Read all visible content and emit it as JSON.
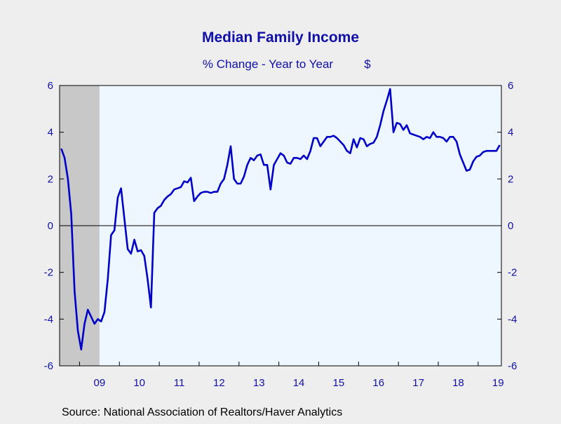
{
  "chart_data": {
    "type": "line",
    "title": "Median Family Income",
    "subtitle": "% Change - Year to Year",
    "unit": "$",
    "source": "Source:  National Association of Realtors/Haver Analytics",
    "ylim": [
      -6,
      6
    ],
    "y_ticks": [
      6,
      4,
      2,
      0,
      -2,
      -4,
      -6
    ],
    "x_tick_labels": [
      "09",
      "10",
      "11",
      "12",
      "13",
      "14",
      "15",
      "16",
      "17",
      "18",
      "19"
    ],
    "recession_shading": {
      "start": "2008-07",
      "end": "2009-06"
    },
    "zero_line": true,
    "grid": false,
    "colors": {
      "line": "#0000c8",
      "text": "#1010a8",
      "plot_background": "#eef6ff",
      "recession": "#c8c8c8",
      "frame": "#000000"
    },
    "series": [
      {
        "x": [
          "2008-07",
          "2008-08",
          "2008-09",
          "2008-10",
          "2008-11",
          "2008-12",
          "2009-01",
          "2009-02",
          "2009-03",
          "2009-04",
          "2009-05",
          "2009-06",
          "2009-07",
          "2009-08",
          "2009-09",
          "2009-10",
          "2009-11",
          "2009-12",
          "2010-01",
          "2010-02",
          "2010-03",
          "2010-04",
          "2010-05",
          "2010-06",
          "2010-07",
          "2010-08",
          "2010-09",
          "2010-10",
          "2010-11",
          "2010-12",
          "2011-01",
          "2011-02",
          "2011-03",
          "2011-04",
          "2011-05",
          "2011-06",
          "2011-07",
          "2011-08",
          "2011-09",
          "2011-10",
          "2011-11",
          "2011-12",
          "2012-01",
          "2012-02",
          "2012-03",
          "2012-04",
          "2012-05",
          "2012-06",
          "2012-07",
          "2012-08",
          "2012-09",
          "2012-10",
          "2012-11",
          "2012-12",
          "2013-01",
          "2013-02",
          "2013-03",
          "2013-04",
          "2013-05",
          "2013-06",
          "2013-07",
          "2013-08",
          "2013-09",
          "2013-10",
          "2013-11",
          "2013-12",
          "2014-01",
          "2014-02",
          "2014-03",
          "2014-04",
          "2014-05",
          "2014-06",
          "2014-07",
          "2014-08",
          "2014-09",
          "2014-10",
          "2014-11",
          "2014-12",
          "2015-01",
          "2015-02",
          "2015-03",
          "2015-04",
          "2015-05",
          "2015-06",
          "2015-07",
          "2015-08",
          "2015-09",
          "2015-10",
          "2015-11",
          "2015-12",
          "2016-01",
          "2016-02",
          "2016-03",
          "2016-04",
          "2016-05",
          "2016-06",
          "2016-07",
          "2016-08",
          "2016-09",
          "2016-10",
          "2016-11",
          "2016-12",
          "2017-01",
          "2017-02",
          "2017-03",
          "2017-04",
          "2017-05",
          "2017-06",
          "2017-07",
          "2017-08",
          "2017-09",
          "2017-10",
          "2017-11",
          "2017-12",
          "2018-01",
          "2018-02",
          "2018-03",
          "2018-04",
          "2018-05",
          "2018-06",
          "2018-07",
          "2018-08",
          "2018-09",
          "2018-10",
          "2018-11",
          "2018-12",
          "2019-01",
          "2019-02",
          "2019-03",
          "2019-04",
          "2019-05",
          "2019-06",
          "2019-07"
        ],
        "y": [
          3.3,
          2.9,
          2.0,
          0.5,
          -2.8,
          -4.5,
          -5.3,
          -4.2,
          -3.6,
          -3.9,
          -4.2,
          -4.0,
          -4.1,
          -3.7,
          -2.3,
          -0.4,
          -0.2,
          1.2,
          1.6,
          0.3,
          -1.0,
          -1.2,
          -0.6,
          -1.1,
          -1.05,
          -1.3,
          -2.3,
          -3.5,
          0.55,
          0.75,
          0.85,
          1.1,
          1.25,
          1.35,
          1.55,
          1.6,
          1.65,
          1.9,
          1.85,
          2.05,
          1.05,
          1.25,
          1.4,
          1.45,
          1.45,
          1.4,
          1.45,
          1.45,
          1.8,
          2.0,
          2.6,
          3.4,
          2.0,
          1.8,
          1.8,
          2.1,
          2.6,
          2.9,
          2.8,
          3.0,
          3.05,
          2.6,
          2.6,
          1.55,
          2.6,
          2.85,
          3.1,
          3.0,
          2.7,
          2.65,
          2.9,
          2.9,
          2.85,
          3.0,
          2.85,
          3.2,
          3.75,
          3.75,
          3.4,
          3.6,
          3.8,
          3.8,
          3.85,
          3.75,
          3.6,
          3.45,
          3.2,
          3.1,
          3.7,
          3.35,
          3.75,
          3.7,
          3.4,
          3.5,
          3.55,
          3.8,
          4.3,
          4.9,
          5.35,
          5.85,
          4.0,
          4.4,
          4.35,
          4.1,
          4.3,
          3.95,
          3.9,
          3.85,
          3.8,
          3.7,
          3.8,
          3.75,
          4.0,
          3.8,
          3.8,
          3.75,
          3.6,
          3.8,
          3.8,
          3.6,
          3.05,
          2.7,
          2.35,
          2.4,
          2.75,
          2.95,
          3.0,
          3.15,
          3.2,
          3.2,
          3.2,
          3.2,
          3.45
        ]
      }
    ]
  }
}
